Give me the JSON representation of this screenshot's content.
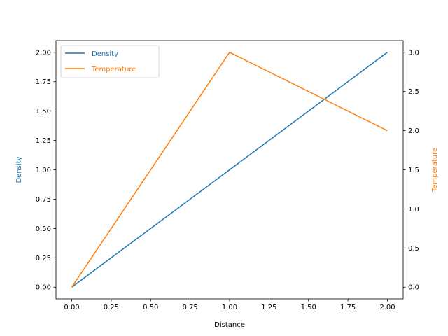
{
  "chart_data": {
    "type": "line",
    "x": [
      0,
      1,
      2
    ],
    "xlabel": "Distance",
    "xlim": [
      -0.1,
      2.1
    ],
    "x_ticks": [
      "0.00",
      "0.25",
      "0.50",
      "0.75",
      "1.00",
      "1.25",
      "1.50",
      "1.75",
      "2.00"
    ],
    "grid": false,
    "legend_placement": "upper-left",
    "series": [
      {
        "name": "Density",
        "axis": "left",
        "values": [
          0,
          1,
          2
        ],
        "color": "#1f77b4"
      },
      {
        "name": "Temperature",
        "axis": "right",
        "values": [
          0,
          3,
          2
        ],
        "color": "#ff7f0e"
      }
    ],
    "y_left": {
      "label": "Density",
      "color": "#1f77b4",
      "ylim": [
        -0.1,
        2.1
      ],
      "ticks": [
        "0.00",
        "0.25",
        "0.50",
        "0.75",
        "1.00",
        "1.25",
        "1.50",
        "1.75",
        "2.00"
      ]
    },
    "y_right": {
      "label": "Temperature",
      "color": "#ff7f0e",
      "ylim": [
        -0.15,
        3.15
      ],
      "ticks": [
        "0.0",
        "0.5",
        "1.0",
        "1.5",
        "2.0",
        "2.5",
        "3.0"
      ]
    }
  }
}
